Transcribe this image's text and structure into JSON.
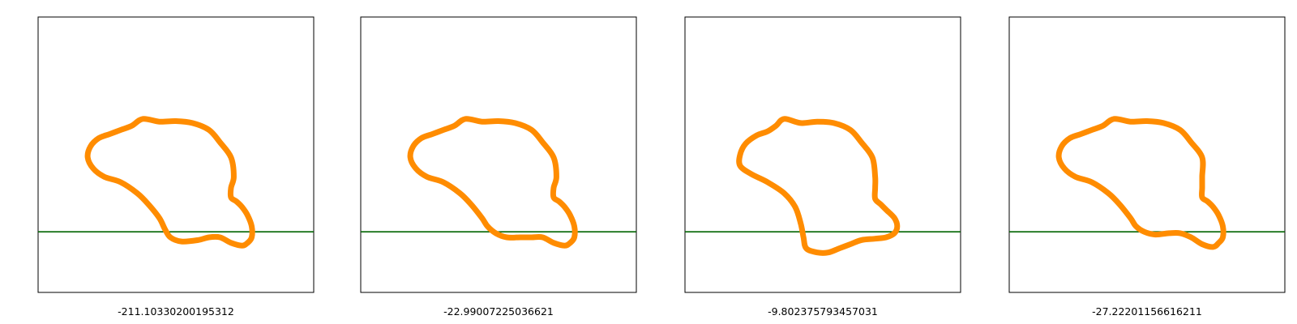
{
  "chart_data": [
    {
      "type": "other",
      "xlim": [
        0,
        1
      ],
      "ylim": [
        0,
        1
      ],
      "waterline_y": 0.22,
      "value_label": "-211.10330200195312",
      "colors": {
        "shape": "#ff8c00",
        "waterline": "#006400"
      },
      "shape": [
        [
          0.38,
          0.63
        ],
        [
          0.44,
          0.62
        ],
        [
          0.5,
          0.622
        ],
        [
          0.56,
          0.615
        ],
        [
          0.62,
          0.59
        ],
        [
          0.66,
          0.545
        ],
        [
          0.7,
          0.49
        ],
        [
          0.71,
          0.42
        ],
        [
          0.7,
          0.38
        ],
        [
          0.7,
          0.345
        ],
        [
          0.72,
          0.33
        ],
        [
          0.74,
          0.31
        ],
        [
          0.76,
          0.28
        ],
        [
          0.775,
          0.24
        ],
        [
          0.775,
          0.2
        ],
        [
          0.76,
          0.18
        ],
        [
          0.74,
          0.17
        ],
        [
          0.7,
          0.18
        ],
        [
          0.66,
          0.2
        ],
        [
          0.62,
          0.2
        ],
        [
          0.58,
          0.19
        ],
        [
          0.52,
          0.185
        ],
        [
          0.48,
          0.2
        ],
        [
          0.46,
          0.23
        ],
        [
          0.44,
          0.27
        ],
        [
          0.4,
          0.32
        ],
        [
          0.36,
          0.36
        ],
        [
          0.3,
          0.4
        ],
        [
          0.24,
          0.42
        ],
        [
          0.2,
          0.45
        ],
        [
          0.18,
          0.49
        ],
        [
          0.19,
          0.53
        ],
        [
          0.22,
          0.56
        ],
        [
          0.26,
          0.575
        ],
        [
          0.3,
          0.59
        ],
        [
          0.34,
          0.605
        ]
      ]
    },
    {
      "type": "other",
      "xlim": [
        0,
        1
      ],
      "ylim": [
        0,
        1
      ],
      "waterline_y": 0.22,
      "value_label": "-22.99007225036621",
      "colors": {
        "shape": "#ff8c00",
        "waterline": "#006400"
      },
      "shape": [
        [
          0.38,
          0.63
        ],
        [
          0.44,
          0.62
        ],
        [
          0.5,
          0.622
        ],
        [
          0.56,
          0.615
        ],
        [
          0.62,
          0.59
        ],
        [
          0.66,
          0.545
        ],
        [
          0.7,
          0.49
        ],
        [
          0.71,
          0.42
        ],
        [
          0.7,
          0.38
        ],
        [
          0.7,
          0.345
        ],
        [
          0.72,
          0.33
        ],
        [
          0.74,
          0.31
        ],
        [
          0.76,
          0.28
        ],
        [
          0.775,
          0.24
        ],
        [
          0.775,
          0.2
        ],
        [
          0.76,
          0.18
        ],
        [
          0.74,
          0.17
        ],
        [
          0.7,
          0.18
        ],
        [
          0.66,
          0.2
        ],
        [
          0.62,
          0.2
        ],
        [
          0.58,
          0.2
        ],
        [
          0.53,
          0.2
        ],
        [
          0.49,
          0.215
        ],
        [
          0.46,
          0.24
        ],
        [
          0.44,
          0.27
        ],
        [
          0.4,
          0.32
        ],
        [
          0.36,
          0.36
        ],
        [
          0.3,
          0.4
        ],
        [
          0.24,
          0.42
        ],
        [
          0.2,
          0.45
        ],
        [
          0.18,
          0.49
        ],
        [
          0.19,
          0.53
        ],
        [
          0.22,
          0.56
        ],
        [
          0.26,
          0.575
        ],
        [
          0.3,
          0.59
        ],
        [
          0.34,
          0.605
        ]
      ]
    },
    {
      "type": "other",
      "xlim": [
        0,
        1
      ],
      "ylim": [
        0,
        1
      ],
      "waterline_y": 0.22,
      "value_label": "-9.802375793457031",
      "colors": {
        "shape": "#ff8c00",
        "waterline": "#006400"
      },
      "shape": [
        [
          0.36,
          0.63
        ],
        [
          0.42,
          0.615
        ],
        [
          0.48,
          0.62
        ],
        [
          0.54,
          0.615
        ],
        [
          0.6,
          0.59
        ],
        [
          0.64,
          0.545
        ],
        [
          0.68,
          0.49
        ],
        [
          0.69,
          0.42
        ],
        [
          0.69,
          0.38
        ],
        [
          0.69,
          0.34
        ],
        [
          0.71,
          0.32
        ],
        [
          0.73,
          0.3
        ],
        [
          0.76,
          0.27
        ],
        [
          0.77,
          0.24
        ],
        [
          0.76,
          0.215
        ],
        [
          0.73,
          0.2
        ],
        [
          0.69,
          0.195
        ],
        [
          0.64,
          0.19
        ],
        [
          0.6,
          0.175
        ],
        [
          0.56,
          0.16
        ],
        [
          0.52,
          0.145
        ],
        [
          0.48,
          0.145
        ],
        [
          0.44,
          0.16
        ],
        [
          0.43,
          0.2
        ],
        [
          0.42,
          0.25
        ],
        [
          0.4,
          0.31
        ],
        [
          0.36,
          0.36
        ],
        [
          0.3,
          0.4
        ],
        [
          0.24,
          0.43
        ],
        [
          0.2,
          0.46
        ],
        [
          0.2,
          0.5
        ],
        [
          0.22,
          0.54
        ],
        [
          0.26,
          0.57
        ],
        [
          0.3,
          0.585
        ],
        [
          0.33,
          0.605
        ]
      ]
    },
    {
      "type": "other",
      "xlim": [
        0,
        1
      ],
      "ylim": [
        0,
        1
      ],
      "waterline_y": 0.22,
      "value_label": "-27.22201156616211",
      "colors": {
        "shape": "#ff8c00",
        "waterline": "#006400"
      },
      "shape": [
        [
          0.38,
          0.63
        ],
        [
          0.44,
          0.62
        ],
        [
          0.5,
          0.622
        ],
        [
          0.56,
          0.615
        ],
        [
          0.62,
          0.59
        ],
        [
          0.66,
          0.545
        ],
        [
          0.7,
          0.49
        ],
        [
          0.7,
          0.42
        ],
        [
          0.7,
          0.38
        ],
        [
          0.7,
          0.345
        ],
        [
          0.72,
          0.33
        ],
        [
          0.74,
          0.31
        ],
        [
          0.76,
          0.28
        ],
        [
          0.775,
          0.24
        ],
        [
          0.775,
          0.2
        ],
        [
          0.76,
          0.18
        ],
        [
          0.74,
          0.165
        ],
        [
          0.7,
          0.175
        ],
        [
          0.66,
          0.2
        ],
        [
          0.62,
          0.215
        ],
        [
          0.58,
          0.215
        ],
        [
          0.53,
          0.21
        ],
        [
          0.49,
          0.22
        ],
        [
          0.46,
          0.24
        ],
        [
          0.44,
          0.27
        ],
        [
          0.4,
          0.32
        ],
        [
          0.36,
          0.36
        ],
        [
          0.3,
          0.4
        ],
        [
          0.24,
          0.42
        ],
        [
          0.2,
          0.45
        ],
        [
          0.18,
          0.49
        ],
        [
          0.19,
          0.53
        ],
        [
          0.22,
          0.56
        ],
        [
          0.26,
          0.575
        ],
        [
          0.3,
          0.59
        ],
        [
          0.34,
          0.605
        ]
      ]
    }
  ]
}
